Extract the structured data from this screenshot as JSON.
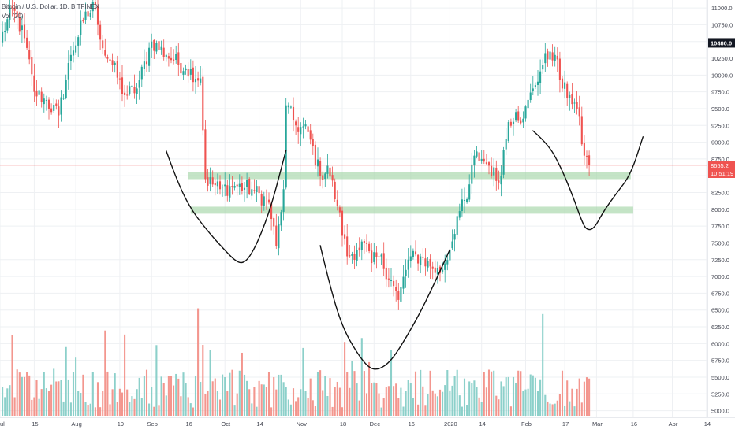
{
  "legend": {
    "symbol_line": "Bitcoin / U.S. Dollar, 1D, BITFINEX",
    "volume_line": "Vol (20)"
  },
  "price_scale": {
    "ticks": [
      "11000.0",
      "10750.0",
      "10500.0",
      "10250.0",
      "10000.0",
      "9750.0",
      "9500.0",
      "9250.0",
      "9000.0",
      "8750.0",
      "8500.0",
      "8250.0",
      "8000.0",
      "7750.0",
      "7500.0",
      "7250.0",
      "7000.0",
      "6750.0",
      "6500.0",
      "6250.0",
      "6000.0",
      "5750.0",
      "5500.0",
      "5250.0",
      "5000.0"
    ],
    "tick_values": [
      11000,
      10750,
      10500,
      10250,
      10000,
      9750,
      9500,
      9250,
      9000,
      8750,
      8500,
      8250,
      8000,
      7750,
      7500,
      7250,
      7000,
      6750,
      6500,
      6250,
      6000,
      5750,
      5500,
      5250,
      5000
    ],
    "range": [
      4960,
      11060
    ]
  },
  "time_axis": {
    "labels": [
      "Jul",
      "15",
      "Aug",
      "19",
      "Sep",
      "16",
      "Oct",
      "14",
      "Nov",
      "18",
      "Dec",
      "16",
      "2020",
      "14",
      "Feb",
      "17",
      "Mar",
      "16",
      "Apr",
      "14"
    ],
    "label_days": [
      0,
      14,
      31,
      49,
      62,
      77,
      92,
      106,
      123,
      140,
      153,
      168,
      184,
      197,
      215,
      231,
      244,
      259,
      275,
      289
    ],
    "day_range": [
      0,
      300
    ]
  },
  "colors": {
    "up": "#26a69a",
    "down": "#ef5350",
    "up_vol": "#80cbc4",
    "down_vol": "#f28b82",
    "zone": "#a5d6a7",
    "grid": "#eef0f3",
    "drawing": "#111111"
  },
  "markers": {
    "horizontal_line": {
      "value": 10480,
      "label": "10480.0"
    },
    "last_price": {
      "value": 8655.2,
      "label": "8655.2",
      "countdown": "10:51:19"
    }
  },
  "zones": [
    {
      "from_day": 77,
      "to_day": 258,
      "low": 8450,
      "high": 8560
    },
    {
      "from_day": 78,
      "to_day": 259,
      "low": 7935,
      "high": 8040
    }
  ],
  "drawings": [
    {
      "name": "left-shoulder-curve",
      "points": [
        [
          68,
          8870
        ],
        [
          72,
          8460
        ],
        [
          78,
          8000
        ],
        [
          86,
          7630
        ],
        [
          92,
          7390
        ],
        [
          96,
          7240
        ],
        [
          99,
          7190
        ],
        [
          102,
          7280
        ],
        [
          106,
          7560
        ],
        [
          111,
          8050
        ],
        [
          117,
          8880
        ]
      ]
    },
    {
      "name": "head-curve",
      "points": [
        [
          131,
          7460
        ],
        [
          135,
          6850
        ],
        [
          140,
          6250
        ],
        [
          146,
          5860
        ],
        [
          151,
          5630
        ],
        [
          155,
          5610
        ],
        [
          160,
          5740
        ],
        [
          166,
          6080
        ],
        [
          172,
          6470
        ],
        [
          178,
          6920
        ],
        [
          184,
          7400
        ]
      ]
    },
    {
      "name": "right-shoulder-curve",
      "points": [
        [
          218,
          9170
        ],
        [
          224,
          8980
        ],
        [
          229,
          8660
        ],
        [
          234,
          8230
        ],
        [
          238,
          7820
        ],
        [
          240,
          7690
        ],
        [
          243,
          7710
        ],
        [
          247,
          7980
        ],
        [
          252,
          8230
        ],
        [
          258,
          8520
        ],
        [
          263,
          9080
        ]
      ]
    }
  ],
  "chart_data": {
    "type": "candlestick",
    "title": "Bitcoin / U.S. Dollar, 1D, BITFINEX",
    "y_axis": {
      "min": 4960,
      "max": 11060,
      "scale": "linear",
      "position": "right"
    },
    "volume_indicator": "Vol (20)",
    "grid": true,
    "anchor_points": [
      {
        "day": 0,
        "close": 10500
      },
      {
        "day": 5,
        "close": 11000
      },
      {
        "day": 10,
        "close": 10550
      },
      {
        "day": 14,
        "close": 9750
      },
      {
        "day": 18,
        "close": 9650
      },
      {
        "day": 24,
        "close": 9400
      },
      {
        "day": 29,
        "close": 10300
      },
      {
        "day": 34,
        "close": 10800
      },
      {
        "day": 39,
        "close": 11050
      },
      {
        "day": 42,
        "close": 10400
      },
      {
        "day": 46,
        "close": 10150
      },
      {
        "day": 51,
        "close": 9700
      },
      {
        "day": 56,
        "close": 9800
      },
      {
        "day": 62,
        "close": 10500
      },
      {
        "day": 68,
        "close": 10300
      },
      {
        "day": 76,
        "close": 10100
      },
      {
        "day": 82,
        "close": 9950
      },
      {
        "day": 84,
        "close": 8450
      },
      {
        "day": 90,
        "close": 8300
      },
      {
        "day": 96,
        "close": 8350
      },
      {
        "day": 103,
        "close": 8300
      },
      {
        "day": 110,
        "close": 8100
      },
      {
        "day": 113,
        "close": 7450
      },
      {
        "day": 116,
        "close": 8300
      },
      {
        "day": 117,
        "close": 9550
      },
      {
        "day": 121,
        "close": 9250
      },
      {
        "day": 126,
        "close": 9150
      },
      {
        "day": 131,
        "close": 8500
      },
      {
        "day": 134,
        "close": 8650
      },
      {
        "day": 138,
        "close": 8050
      },
      {
        "day": 142,
        "close": 7300
      },
      {
        "day": 146,
        "close": 7400
      },
      {
        "day": 149,
        "close": 7500
      },
      {
        "day": 152,
        "close": 7200
      },
      {
        "day": 155,
        "close": 7300
      },
      {
        "day": 160,
        "close": 6950
      },
      {
        "day": 163,
        "close": 6650
      },
      {
        "day": 167,
        "close": 7250
      },
      {
        "day": 172,
        "close": 7300
      },
      {
        "day": 176,
        "close": 7150
      },
      {
        "day": 180,
        "close": 7050
      },
      {
        "day": 184,
        "close": 7400
      },
      {
        "day": 187,
        "close": 7900
      },
      {
        "day": 191,
        "close": 8150
      },
      {
        "day": 194,
        "close": 8800
      },
      {
        "day": 197,
        "close": 8750
      },
      {
        "day": 200,
        "close": 8650
      },
      {
        "day": 204,
        "close": 8400
      },
      {
        "day": 208,
        "close": 9300
      },
      {
        "day": 211,
        "close": 9450
      },
      {
        "day": 214,
        "close": 9350
      },
      {
        "day": 218,
        "close": 9800
      },
      {
        "day": 222,
        "close": 10150
      },
      {
        "day": 225,
        "close": 10350
      },
      {
        "day": 227,
        "close": 10300
      },
      {
        "day": 230,
        "close": 9800
      },
      {
        "day": 233,
        "close": 9700
      },
      {
        "day": 236,
        "close": 9500
      },
      {
        "day": 239,
        "close": 8800
      },
      {
        "day": 241,
        "close": 8655
      }
    ]
  }
}
